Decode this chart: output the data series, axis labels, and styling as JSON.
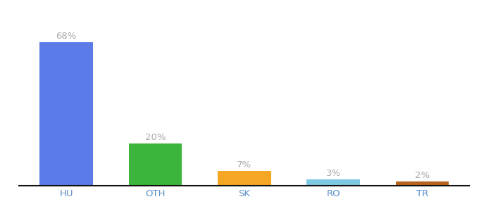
{
  "categories": [
    "HU",
    "OTH",
    "SK",
    "RO",
    "TR"
  ],
  "values": [
    68,
    20,
    7,
    3,
    2
  ],
  "bar_colors": [
    "#5b7be8",
    "#3bb53b",
    "#f5a623",
    "#7ec8e3",
    "#b5651d"
  ],
  "background_color": "#ffffff",
  "ylim": [
    0,
    80
  ],
  "label_fontsize": 9.5,
  "tick_fontsize": 9.5,
  "bar_width": 0.6,
  "label_color": "#aaaaaa"
}
